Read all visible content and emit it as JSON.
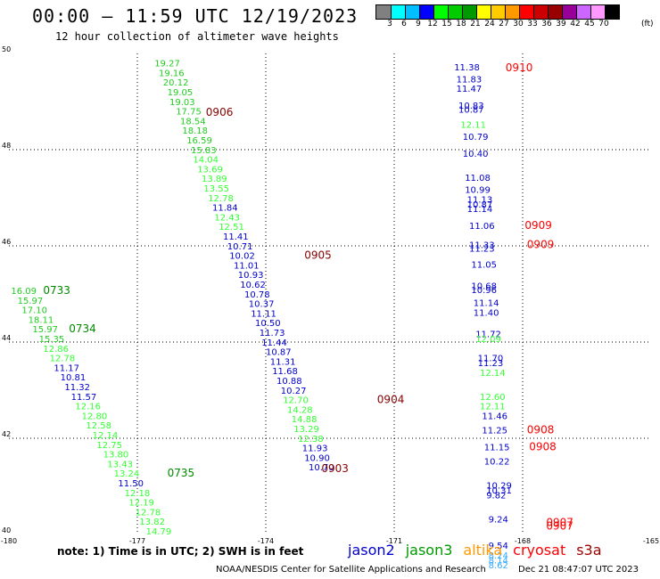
{
  "header": {
    "title": "00:00 – 11:59 UTC 12/19/2023",
    "subtitle": "12 hour collection of altimeter wave heights"
  },
  "colorbar": {
    "colors": [
      "#808080",
      "#00ffff",
      "#00bfff",
      "#0000ff",
      "#00ff00",
      "#00cc00",
      "#009900",
      "#ffff00",
      "#ffcc00",
      "#ff9900",
      "#ff0000",
      "#cc0000",
      "#990000",
      "#990099",
      "#cc66ff",
      "#ff99ff",
      "#000000"
    ],
    "ticks": [
      "3",
      "6",
      "9",
      "12",
      "15",
      "18",
      "21",
      "24",
      "27",
      "30",
      "33",
      "36",
      "39",
      "42",
      "45",
      "70"
    ],
    "unit": "(ft)"
  },
  "footer": {
    "note": "note:  1) Time is in UTC;  2) SWH is in feet",
    "legend": [
      {
        "label": "jason2",
        "color": "#0000cc"
      },
      {
        "label": "jason3",
        "color": "#009900"
      },
      {
        "label": "altika",
        "color": "#ff9900"
      },
      {
        "label": "cryosat",
        "color": "#ff0000"
      },
      {
        "label": "s3a",
        "color": "#990000"
      }
    ],
    "credit": "NOAA/NESDIS Center for Satellite Applications and Research",
    "stamp": "Dec 21 08:47:07 UTC 2023"
  },
  "chart_data": {
    "type": "scatter",
    "xlim": [
      -180,
      -165
    ],
    "ylim": [
      40,
      50
    ],
    "x_ticks": [
      "-180",
      "-177",
      "-174",
      "-171",
      "-168",
      "-165"
    ],
    "y_ticks": [
      "40",
      "42",
      "44",
      "46",
      "48",
      "50"
    ],
    "grid": true,
    "palette": {
      "c15": "#33ff33",
      "c18": "#22cc22",
      "c12": "#0000cc",
      "c21": "#008800",
      "c9": "#33aaff",
      "red": "#ff0000",
      "dark": "#880000"
    },
    "points": [
      {
        "x": -176.6,
        "y": 49.73,
        "v": "19.27",
        "c": "c18"
      },
      {
        "x": -176.5,
        "y": 49.53,
        "v": "19.16",
        "c": "c18"
      },
      {
        "x": -176.4,
        "y": 49.33,
        "v": "20.12",
        "c": "c18"
      },
      {
        "x": -176.3,
        "y": 49.13,
        "v": "19.05",
        "c": "c18"
      },
      {
        "x": -176.25,
        "y": 48.93,
        "v": "19.03",
        "c": "c18"
      },
      {
        "x": -176.1,
        "y": 48.73,
        "v": "17.75",
        "c": "c18"
      },
      {
        "x": -176.0,
        "y": 48.53,
        "v": "18.54",
        "c": "c18"
      },
      {
        "x": -175.95,
        "y": 48.33,
        "v": "18.18",
        "c": "c18"
      },
      {
        "x": -175.85,
        "y": 48.13,
        "v": "16.59",
        "c": "c18"
      },
      {
        "x": -175.75,
        "y": 47.93,
        "v": "15.83",
        "c": "c18"
      },
      {
        "x": -175.7,
        "y": 47.73,
        "v": "14.04",
        "c": "c15"
      },
      {
        "x": -175.6,
        "y": 47.53,
        "v": "13.69",
        "c": "c15"
      },
      {
        "x": -175.5,
        "y": 47.33,
        "v": "13.89",
        "c": "c15"
      },
      {
        "x": -175.45,
        "y": 47.13,
        "v": "13.55",
        "c": "c15"
      },
      {
        "x": -175.35,
        "y": 46.93,
        "v": "12.78",
        "c": "c15"
      },
      {
        "x": -175.25,
        "y": 46.73,
        "v": "11.84",
        "c": "c12"
      },
      {
        "x": -175.2,
        "y": 46.53,
        "v": "12.43",
        "c": "c15"
      },
      {
        "x": -175.1,
        "y": 46.33,
        "v": "12.51",
        "c": "c15"
      },
      {
        "x": -175.0,
        "y": 46.13,
        "v": "11.41",
        "c": "c12"
      },
      {
        "x": -174.9,
        "y": 45.93,
        "v": "10.71",
        "c": "c12"
      },
      {
        "x": -174.85,
        "y": 45.73,
        "v": "10.02",
        "c": "c12"
      },
      {
        "x": -174.75,
        "y": 45.53,
        "v": "11.01",
        "c": "c12"
      },
      {
        "x": -174.65,
        "y": 45.33,
        "v": "10.93",
        "c": "c12"
      },
      {
        "x": -174.6,
        "y": 45.13,
        "v": "10.62",
        "c": "c12"
      },
      {
        "x": -174.5,
        "y": 44.93,
        "v": "10.78",
        "c": "c12"
      },
      {
        "x": -174.4,
        "y": 44.73,
        "v": "10.37",
        "c": "c12"
      },
      {
        "x": -174.35,
        "y": 44.53,
        "v": "11.11",
        "c": "c12"
      },
      {
        "x": -174.25,
        "y": 44.33,
        "v": "10.50",
        "c": "c12"
      },
      {
        "x": -174.15,
        "y": 44.13,
        "v": "11.73",
        "c": "c12"
      },
      {
        "x": -174.1,
        "y": 43.93,
        "v": "11.44",
        "c": "c12"
      },
      {
        "x": -174.0,
        "y": 43.73,
        "v": "10.87",
        "c": "c12"
      },
      {
        "x": -173.9,
        "y": 43.53,
        "v": "11.31",
        "c": "c12"
      },
      {
        "x": -173.85,
        "y": 43.33,
        "v": "11.68",
        "c": "c12"
      },
      {
        "x": -173.75,
        "y": 43.13,
        "v": "10.88",
        "c": "c12"
      },
      {
        "x": -173.65,
        "y": 42.93,
        "v": "10.27",
        "c": "c12"
      },
      {
        "x": -173.6,
        "y": 42.73,
        "v": "12.70",
        "c": "c15"
      },
      {
        "x": -173.5,
        "y": 42.53,
        "v": "14.28",
        "c": "c15"
      },
      {
        "x": -173.4,
        "y": 42.33,
        "v": "14.88",
        "c": "c15"
      },
      {
        "x": -173.35,
        "y": 42.13,
        "v": "13.29",
        "c": "c15"
      },
      {
        "x": -173.25,
        "y": 41.93,
        "v": "12.38",
        "c": "c15"
      },
      {
        "x": -173.15,
        "y": 41.73,
        "v": "11.93",
        "c": "c12"
      },
      {
        "x": -173.1,
        "y": 41.53,
        "v": "10.90",
        "c": "c12"
      },
      {
        "x": -173.0,
        "y": 41.33,
        "v": "10.70",
        "c": "c12"
      },
      {
        "x": -179.95,
        "y": 45.0,
        "v": "16.09",
        "c": "c18"
      },
      {
        "x": -179.8,
        "y": 44.8,
        "v": "15.97",
        "c": "c18"
      },
      {
        "x": -179.7,
        "y": 44.6,
        "v": "17.10",
        "c": "c18"
      },
      {
        "x": -179.55,
        "y": 44.4,
        "v": "18.11",
        "c": "c18"
      },
      {
        "x": -179.45,
        "y": 44.2,
        "v": "15.97",
        "c": "c18"
      },
      {
        "x": -179.3,
        "y": 44.0,
        "v": "15.35",
        "c": "c18"
      },
      {
        "x": -179.2,
        "y": 43.8,
        "v": "12.86",
        "c": "c15"
      },
      {
        "x": -179.05,
        "y": 43.6,
        "v": "12.78",
        "c": "c15"
      },
      {
        "x": -178.95,
        "y": 43.4,
        "v": "11.17",
        "c": "c12"
      },
      {
        "x": -178.8,
        "y": 43.2,
        "v": "10.81",
        "c": "c12"
      },
      {
        "x": -178.7,
        "y": 43.0,
        "v": "11.32",
        "c": "c12"
      },
      {
        "x": -178.55,
        "y": 42.8,
        "v": "11.57",
        "c": "c12"
      },
      {
        "x": -178.45,
        "y": 42.6,
        "v": "12.16",
        "c": "c15"
      },
      {
        "x": -178.3,
        "y": 42.4,
        "v": "12.80",
        "c": "c15"
      },
      {
        "x": -178.2,
        "y": 42.2,
        "v": "12.58",
        "c": "c15"
      },
      {
        "x": -178.05,
        "y": 42.0,
        "v": "12.14",
        "c": "c15"
      },
      {
        "x": -177.95,
        "y": 41.8,
        "v": "12.75",
        "c": "c15"
      },
      {
        "x": -177.8,
        "y": 41.6,
        "v": "13.80",
        "c": "c15"
      },
      {
        "x": -177.7,
        "y": 41.4,
        "v": "13.43",
        "c": "c15"
      },
      {
        "x": -177.55,
        "y": 41.2,
        "v": "13.24",
        "c": "c15"
      },
      {
        "x": -177.45,
        "y": 41.0,
        "v": "11.50",
        "c": "c12"
      },
      {
        "x": -177.3,
        "y": 40.8,
        "v": "12.18",
        "c": "c15"
      },
      {
        "x": -177.2,
        "y": 40.6,
        "v": "12.19",
        "c": "c15"
      },
      {
        "x": -177.05,
        "y": 40.4,
        "v": "12.78",
        "c": "c15"
      },
      {
        "x": -176.95,
        "y": 40.2,
        "v": "13.82",
        "c": "c15"
      },
      {
        "x": -176.8,
        "y": 40.0,
        "v": "14.79",
        "c": "c15"
      },
      {
        "x": -169.6,
        "y": 49.65,
        "v": "11.38",
        "c": "c12"
      },
      {
        "x": -169.55,
        "y": 49.4,
        "v": "11.83",
        "c": "c12"
      },
      {
        "x": -169.55,
        "y": 49.2,
        "v": "11.47",
        "c": "c12"
      },
      {
        "x": -169.5,
        "y": 48.85,
        "v": "10.83",
        "c": "c12"
      },
      {
        "x": -169.5,
        "y": 48.77,
        "v": "10.87",
        "c": "c12"
      },
      {
        "x": -169.45,
        "y": 48.45,
        "v": "12.11",
        "c": "c15"
      },
      {
        "x": -169.4,
        "y": 48.2,
        "v": "10.79",
        "c": "c12"
      },
      {
        "x": -169.4,
        "y": 47.85,
        "v": "10.40",
        "c": "c12"
      },
      {
        "x": -169.35,
        "y": 47.35,
        "v": "11.08",
        "c": "c12"
      },
      {
        "x": -169.35,
        "y": 47.1,
        "v": "10.99",
        "c": "c12"
      },
      {
        "x": -169.3,
        "y": 46.9,
        "v": "11.13",
        "c": "c12"
      },
      {
        "x": -169.3,
        "y": 46.8,
        "v": "10.87",
        "c": "c12"
      },
      {
        "x": -169.3,
        "y": 46.7,
        "v": "11.14",
        "c": "c12"
      },
      {
        "x": -169.25,
        "y": 46.35,
        "v": "11.06",
        "c": "c12"
      },
      {
        "x": -169.25,
        "y": 45.95,
        "v": "11.33",
        "c": "c12"
      },
      {
        "x": -169.25,
        "y": 45.88,
        "v": "11.23",
        "c": "c12"
      },
      {
        "x": -169.2,
        "y": 45.55,
        "v": "11.05",
        "c": "c12"
      },
      {
        "x": -169.2,
        "y": 45.1,
        "v": "10.68",
        "c": "c12"
      },
      {
        "x": -169.2,
        "y": 45.02,
        "v": "10.96",
        "c": "c12"
      },
      {
        "x": -169.15,
        "y": 44.75,
        "v": "11.14",
        "c": "c12"
      },
      {
        "x": -169.15,
        "y": 44.55,
        "v": "11.40",
        "c": "c12"
      },
      {
        "x": -169.1,
        "y": 44.1,
        "v": "11.72",
        "c": "c12"
      },
      {
        "x": -169.1,
        "y": 44.0,
        "v": "12.09",
        "c": "c15"
      },
      {
        "x": -169.05,
        "y": 43.6,
        "v": "11.70",
        "c": "c12"
      },
      {
        "x": -169.05,
        "y": 43.5,
        "v": "11.23",
        "c": "c12"
      },
      {
        "x": -169.0,
        "y": 43.3,
        "v": "12.14",
        "c": "c15"
      },
      {
        "x": -169.0,
        "y": 42.8,
        "v": "12.60",
        "c": "c15"
      },
      {
        "x": -169.0,
        "y": 42.6,
        "v": "12.11",
        "c": "c15"
      },
      {
        "x": -168.95,
        "y": 42.4,
        "v": "11.46",
        "c": "c12"
      },
      {
        "x": -168.95,
        "y": 42.1,
        "v": "11.25",
        "c": "c12"
      },
      {
        "x": -168.9,
        "y": 41.75,
        "v": "11.15",
        "c": "c12"
      },
      {
        "x": -168.9,
        "y": 41.45,
        "v": "10.22",
        "c": "c12"
      },
      {
        "x": -168.85,
        "y": 40.95,
        "v": "10.29",
        "c": "c12"
      },
      {
        "x": -168.85,
        "y": 40.85,
        "v": "10.31",
        "c": "c12"
      },
      {
        "x": -168.85,
        "y": 40.75,
        "v": "9.82",
        "c": "c12"
      },
      {
        "x": -168.8,
        "y": 40.25,
        "v": "9.24",
        "c": "c12"
      },
      {
        "x": -168.8,
        "y": 39.7,
        "v": "9.54",
        "c": "c12"
      },
      {
        "x": -168.8,
        "y": 39.5,
        "v": "8.24",
        "c": "c9"
      },
      {
        "x": -168.8,
        "y": 39.4,
        "v": "8.14",
        "c": "c9"
      },
      {
        "x": -168.8,
        "y": 39.3,
        "v": "8.62",
        "c": "c9"
      }
    ],
    "time_labels": [
      {
        "x": -175.4,
        "y": 48.7,
        "t": "0906",
        "c": "dark"
      },
      {
        "x": -173.1,
        "y": 45.73,
        "t": "0905",
        "c": "dark"
      },
      {
        "x": -171.4,
        "y": 42.73,
        "t": "0904",
        "c": "dark"
      },
      {
        "x": -172.7,
        "y": 41.3,
        "t": "0903",
        "c": "dark"
      },
      {
        "x": -179.2,
        "y": 45.0,
        "t": "0733",
        "c": "c21"
      },
      {
        "x": -178.6,
        "y": 44.2,
        "t": "0734",
        "c": "c21"
      },
      {
        "x": -176.3,
        "y": 41.2,
        "t": "0735",
        "c": "c21"
      },
      {
        "x": -168.4,
        "y": 49.63,
        "t": "0910",
        "c": "red"
      },
      {
        "x": -167.95,
        "y": 46.35,
        "t": "0909",
        "c": "red"
      },
      {
        "x": -167.9,
        "y": 45.95,
        "t": "0909",
        "c": "red"
      },
      {
        "x": -167.9,
        "y": 42.1,
        "t": "0908",
        "c": "red"
      },
      {
        "x": -167.85,
        "y": 41.75,
        "t": "0908",
        "c": "red"
      },
      {
        "x": -167.45,
        "y": 40.18,
        "t": "0907",
        "c": "red"
      },
      {
        "x": -167.45,
        "y": 40.1,
        "t": "0907",
        "c": "red"
      }
    ]
  }
}
